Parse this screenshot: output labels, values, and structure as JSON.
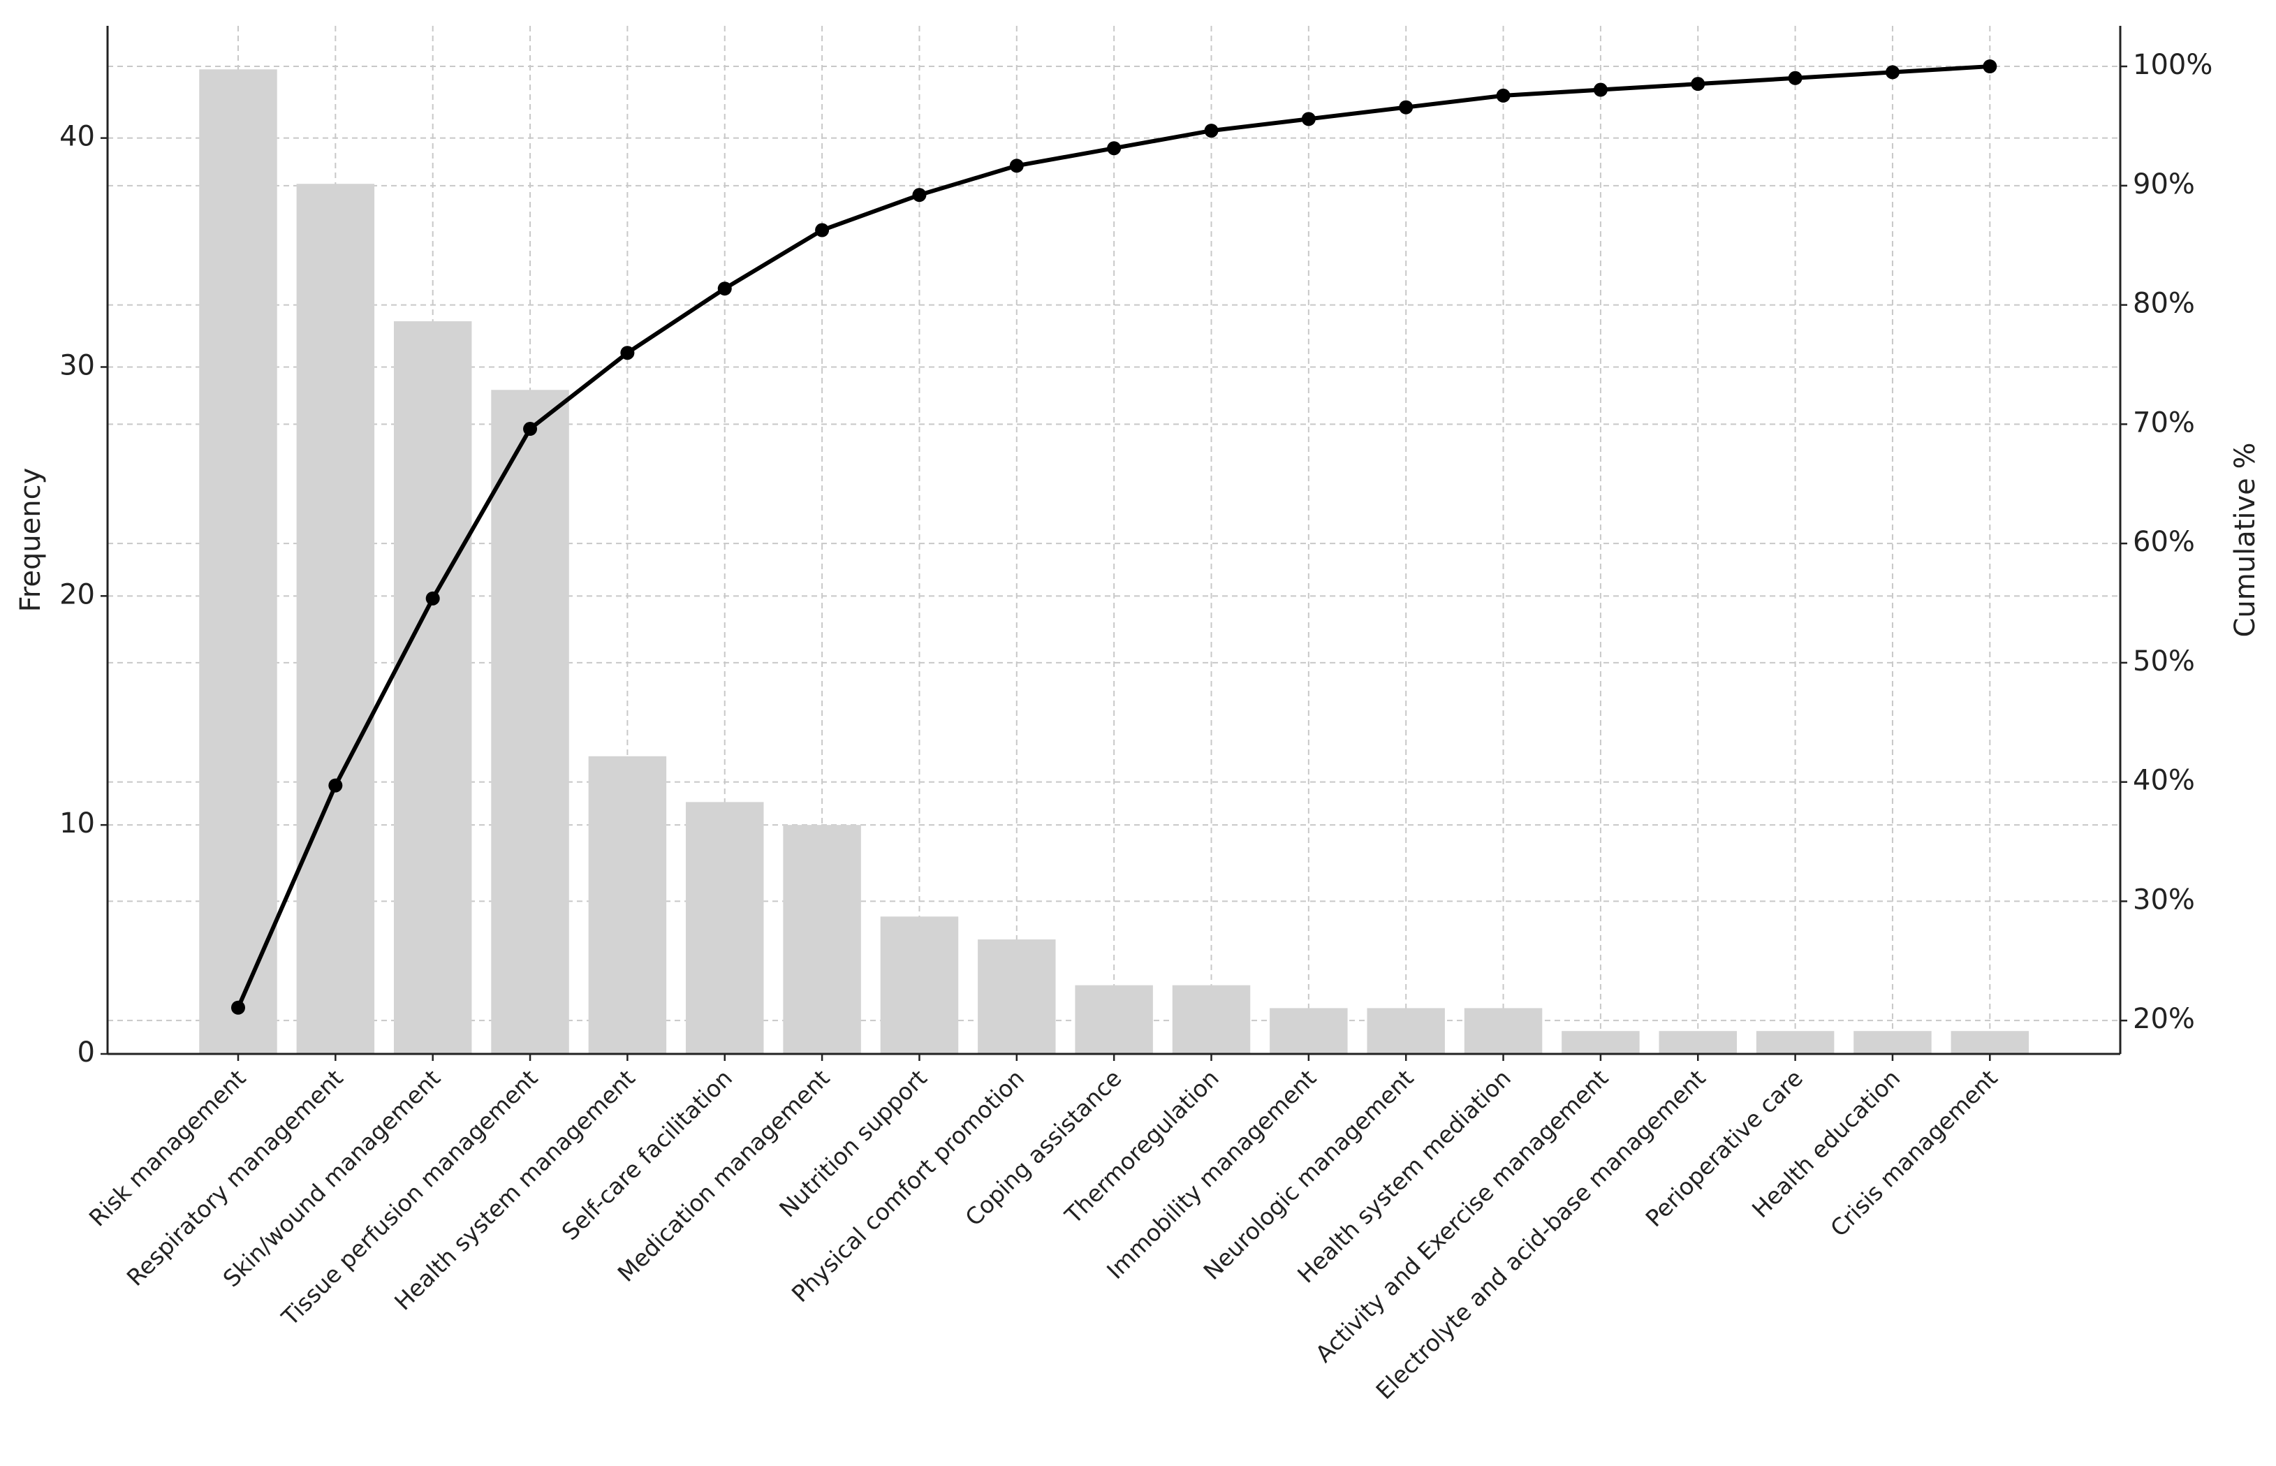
{
  "chart_data": {
    "type": "pareto",
    "y_label": "Frequency",
    "y2_label": "Cumulative %",
    "categories": [
      "Risk management",
      "Respiratory management",
      "Skin/wound management",
      "Tissue perfusion management",
      "Health system management",
      "Self-care facilitation",
      "Medication management",
      "Nutrition support",
      "Physical comfort promotion",
      "Coping assistance",
      "Thermoregulation",
      "Immobility management",
      "Neurologic management",
      "Health system mediation",
      "Activity and Exercise management",
      "Electrolyte and acid-base management",
      "Perioperative care",
      "Health education",
      "Crisis management"
    ],
    "series": [
      {
        "type": "bar",
        "color": "#d3d3d3",
        "values": [
          43,
          38,
          32,
          29,
          13,
          11,
          10,
          6,
          5,
          3,
          3,
          2,
          2,
          2,
          1,
          1,
          1,
          1,
          1
        ]
      },
      {
        "type": "line",
        "axis": "y2",
        "color": "#000000",
        "values": [
          21.08,
          39.71,
          55.39,
          69.61,
          75.98,
          81.37,
          86.27,
          89.22,
          91.67,
          93.14,
          94.61,
          95.59,
          96.57,
          97.55,
          98.04,
          98.53,
          99.02,
          99.51,
          100
        ]
      }
    ],
    "ylim": [
      0,
      44.9
    ],
    "yticks": [
      0,
      10,
      20,
      30,
      40
    ],
    "y2lim": [
      17.2,
      103.4
    ],
    "y2ticks": [
      {
        "value": 20,
        "label": "20%"
      },
      {
        "value": 30,
        "label": "30%"
      },
      {
        "value": 40,
        "label": "40%"
      },
      {
        "value": 50,
        "label": "50%"
      },
      {
        "value": 60,
        "label": "60%"
      },
      {
        "value": 70,
        "label": "70%"
      },
      {
        "value": 80,
        "label": "80%"
      },
      {
        "value": 90,
        "label": "90%"
      },
      {
        "value": 100,
        "label": "100%"
      }
    ],
    "grid": true
  }
}
